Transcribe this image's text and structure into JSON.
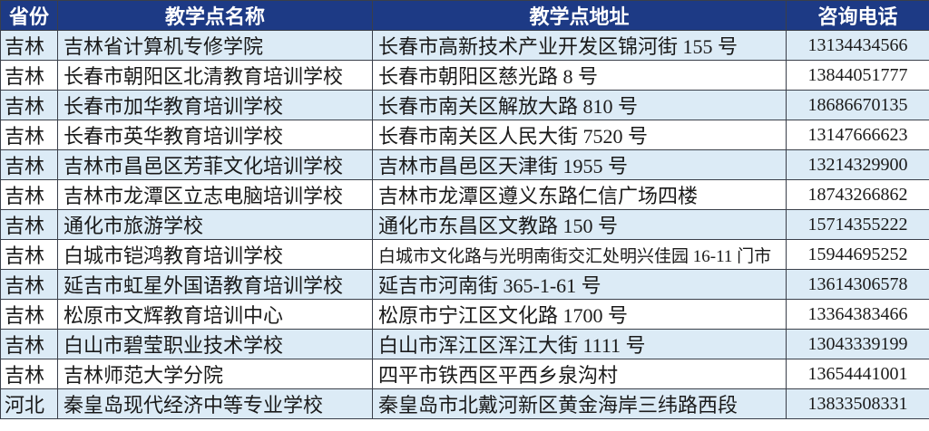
{
  "header": {
    "province": "省份",
    "name": "教学点名称",
    "address": "教学点地址",
    "phone": "咨询电话"
  },
  "colors": {
    "header_bg": "#1d3a85",
    "alt_row_bg": "#dcebf6",
    "row_bg": "#ffffff"
  },
  "rows": [
    {
      "province": "吉林",
      "name": "吉林省计算机专修学院",
      "address": "长春市高新技术产业开发区锦河街 155 号",
      "phone": "13134434566"
    },
    {
      "province": "吉林",
      "name": "长春市朝阳区北清教育培训学校",
      "address": "长春市朝阳区慈光路 8 号",
      "phone": "13844051777"
    },
    {
      "province": "吉林",
      "name": "长春市加华教育培训学校",
      "address": "长春市南关区解放大路 810 号",
      "phone": "18686670135"
    },
    {
      "province": "吉林",
      "name": "长春市英华教育培训学校",
      "address": "长春市南关区人民大街 7520 号",
      "phone": "13147666623"
    },
    {
      "province": "吉林",
      "name": "吉林市昌邑区芳菲文化培训学校",
      "address": "吉林市昌邑区天津街 1955 号",
      "phone": "13214329900"
    },
    {
      "province": "吉林",
      "name": "吉林市龙潭区立志电脑培训学校",
      "address": "吉林市龙潭区遵义东路仁信广场四楼",
      "phone": "18743266862"
    },
    {
      "province": "吉林",
      "name": "通化市旅游学校",
      "address": "通化市东昌区文教路 150 号",
      "phone": "15714355222"
    },
    {
      "province": "吉林",
      "name": "白城市铠鸿教育培训学校",
      "address": "白城市文化路与光明南街交汇处明兴佳园 16-11 门市",
      "phone": "15944695252"
    },
    {
      "province": "吉林",
      "name": "延吉市虹星外国语教育培训学校",
      "address": "延吉市河南街 365-1-61 号",
      "phone": "13614306578"
    },
    {
      "province": "吉林",
      "name": "松原市文辉教育培训中心",
      "address": "松原市宁江区文化路 1700 号",
      "phone": "13364383466"
    },
    {
      "province": "吉林",
      "name": "白山市碧莹职业技术学校",
      "address": "白山市浑江区浑江大街 1111 号",
      "phone": "13043339199"
    },
    {
      "province": "吉林",
      "name": "吉林师范大学分院",
      "address": "四平市铁西区平西乡泉沟村",
      "phone": "13654441001"
    },
    {
      "province": "河北",
      "name": "秦皇岛现代经济中等专业学校",
      "address": "秦皇岛市北戴河新区黄金海岸三纬路西段",
      "phone": "13833508331"
    }
  ]
}
